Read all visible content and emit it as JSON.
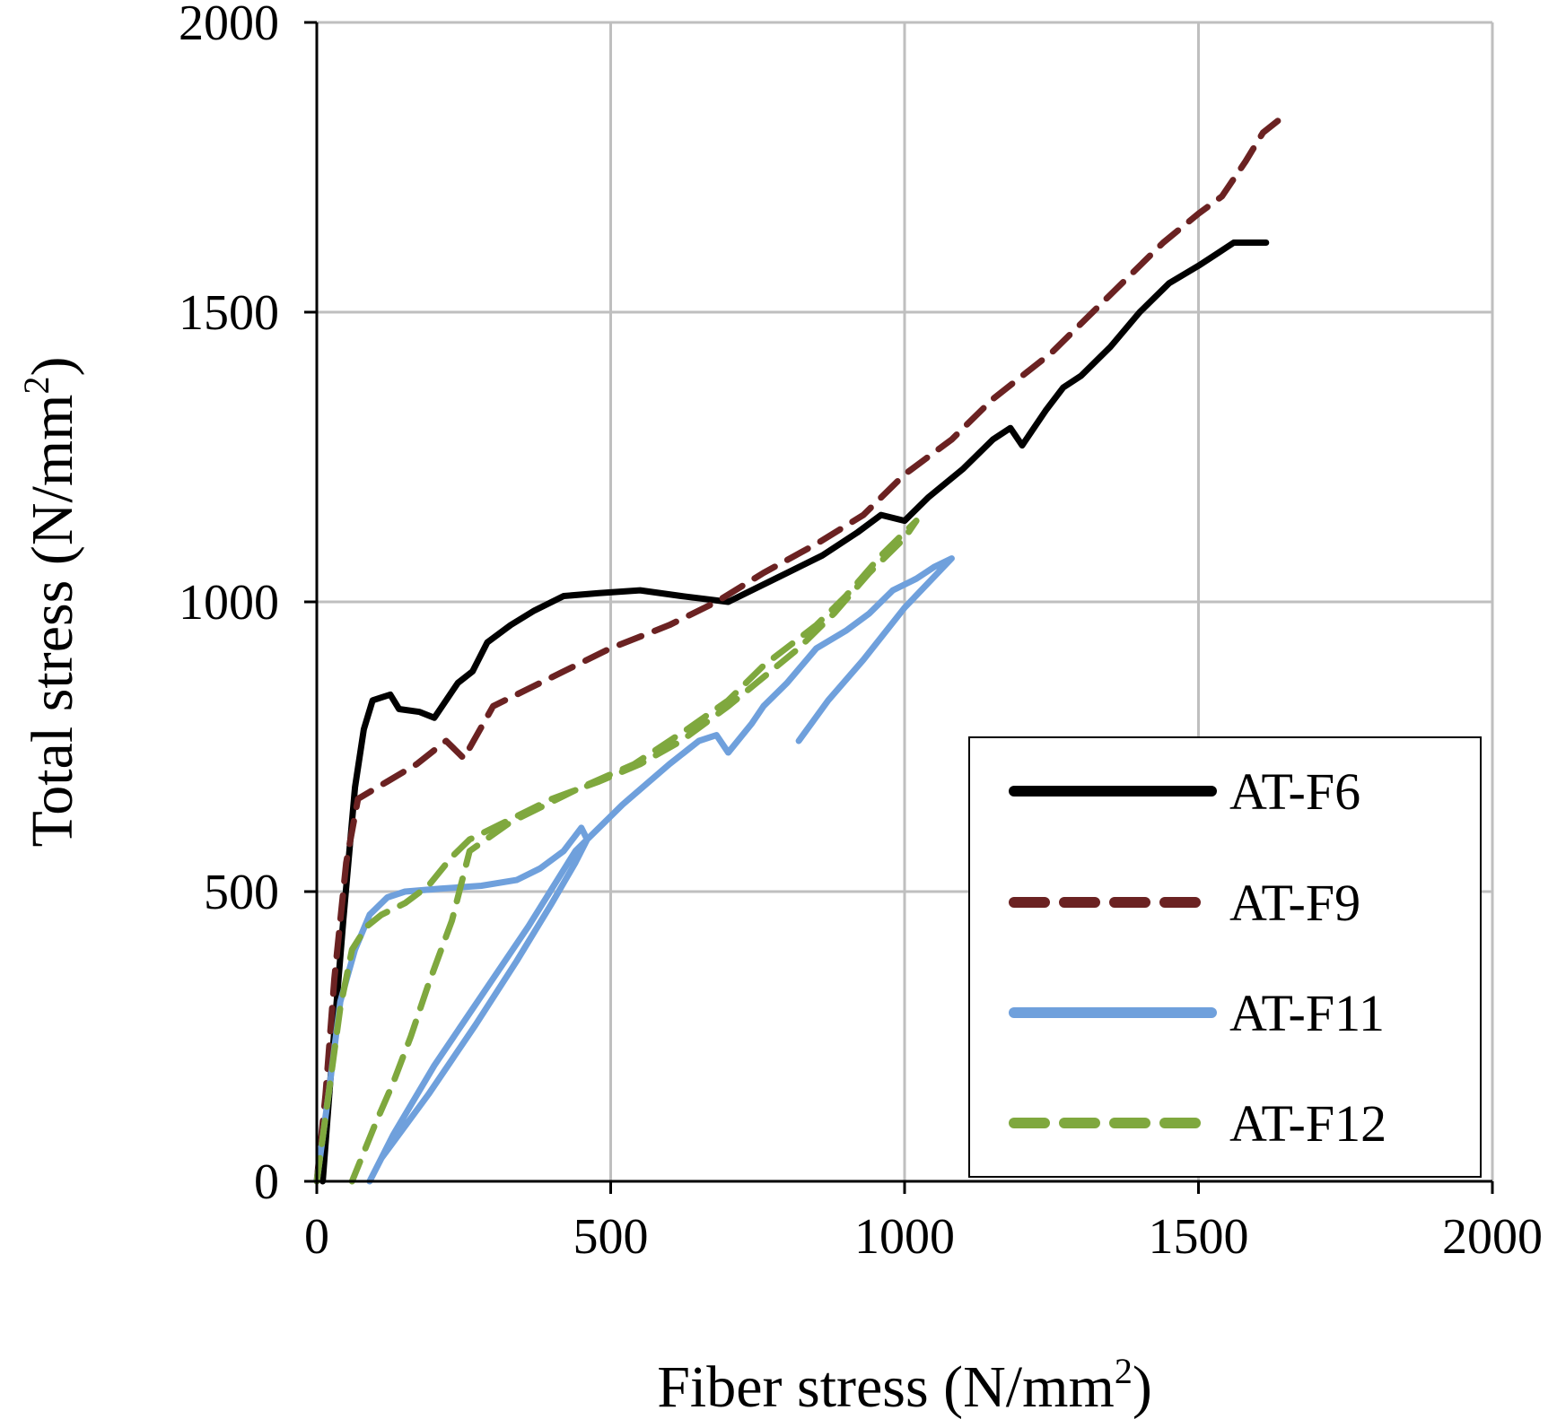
{
  "chart_data": {
    "type": "line",
    "xlabel": {
      "text": "Fiber stress (N/mm",
      "sup": "2",
      "close": ")"
    },
    "ylabel": {
      "text": "Total stress (N/mm",
      "sup": "2",
      "close": ")"
    },
    "xlim": [
      0,
      2000
    ],
    "ylim": [
      0,
      2000
    ],
    "xticks": [
      "0",
      "500",
      "1000",
      "1500",
      "2000"
    ],
    "yticks": [
      "0",
      "500",
      "1000",
      "1500",
      "2000"
    ],
    "xtick_values": [
      0,
      500,
      1000,
      1500,
      2000
    ],
    "ytick_values": [
      0,
      500,
      1000,
      1500,
      2000
    ],
    "grid": true,
    "legend_position": "bottom-right",
    "series": [
      {
        "name": "AT-F6",
        "color": "#000000",
        "dash": "solid",
        "points": [
          [
            10,
            0
          ],
          [
            25,
            200
          ],
          [
            45,
            450
          ],
          [
            65,
            680
          ],
          [
            80,
            780
          ],
          [
            95,
            830
          ],
          [
            110,
            835
          ],
          [
            125,
            840
          ],
          [
            140,
            815
          ],
          [
            175,
            810
          ],
          [
            200,
            800
          ],
          [
            220,
            830
          ],
          [
            240,
            860
          ],
          [
            265,
            880
          ],
          [
            290,
            930
          ],
          [
            330,
            960
          ],
          [
            370,
            985
          ],
          [
            420,
            1010
          ],
          [
            480,
            1015
          ],
          [
            550,
            1020
          ],
          [
            620,
            1010
          ],
          [
            700,
            1000
          ],
          [
            780,
            1040
          ],
          [
            860,
            1080
          ],
          [
            920,
            1120
          ],
          [
            960,
            1150
          ],
          [
            1000,
            1140
          ],
          [
            1040,
            1180
          ],
          [
            1100,
            1230
          ],
          [
            1150,
            1280
          ],
          [
            1180,
            1300
          ],
          [
            1200,
            1270
          ],
          [
            1240,
            1330
          ],
          [
            1270,
            1370
          ],
          [
            1300,
            1390
          ],
          [
            1350,
            1440
          ],
          [
            1400,
            1500
          ],
          [
            1450,
            1550
          ],
          [
            1500,
            1580
          ],
          [
            1530,
            1600
          ],
          [
            1560,
            1620
          ],
          [
            1600,
            1620
          ],
          [
            1615,
            1620
          ]
        ]
      },
      {
        "name": "AT-F9",
        "color": "#6b2222",
        "dash": "dashed",
        "points": [
          [
            0,
            0
          ],
          [
            15,
            150
          ],
          [
            30,
            350
          ],
          [
            50,
            550
          ],
          [
            70,
            660
          ],
          [
            120,
            690
          ],
          [
            170,
            720
          ],
          [
            220,
            760
          ],
          [
            250,
            730
          ],
          [
            300,
            820
          ],
          [
            360,
            850
          ],
          [
            420,
            880
          ],
          [
            500,
            920
          ],
          [
            600,
            960
          ],
          [
            680,
            1000
          ],
          [
            760,
            1050
          ],
          [
            850,
            1100
          ],
          [
            930,
            1150
          ],
          [
            1000,
            1220
          ],
          [
            1080,
            1280
          ],
          [
            1150,
            1350
          ],
          [
            1250,
            1430
          ],
          [
            1350,
            1530
          ],
          [
            1440,
            1620
          ],
          [
            1500,
            1670
          ],
          [
            1540,
            1700
          ],
          [
            1580,
            1760
          ],
          [
            1610,
            1810
          ],
          [
            1635,
            1830
          ]
        ]
      },
      {
        "name": "AT-F11",
        "color": "#6fa0dc",
        "dash": "solid",
        "points": [
          [
            0,
            0
          ],
          [
            20,
            150
          ],
          [
            40,
            310
          ],
          [
            65,
            400
          ],
          [
            90,
            460
          ],
          [
            120,
            490
          ],
          [
            150,
            500
          ],
          [
            210,
            505
          ],
          [
            280,
            510
          ],
          [
            340,
            520
          ],
          [
            380,
            540
          ],
          [
            420,
            570
          ],
          [
            450,
            610
          ],
          [
            460,
            590
          ],
          [
            440,
            550
          ],
          [
            400,
            480
          ],
          [
            340,
            380
          ],
          [
            270,
            270
          ],
          [
            190,
            150
          ],
          [
            110,
            40
          ],
          [
            90,
            0
          ],
          [
            130,
            80
          ],
          [
            200,
            200
          ],
          [
            280,
            320
          ],
          [
            360,
            440
          ],
          [
            440,
            570
          ],
          [
            520,
            650
          ],
          [
            600,
            720
          ],
          [
            650,
            760
          ],
          [
            680,
            770
          ],
          [
            700,
            740
          ],
          [
            740,
            790
          ],
          [
            760,
            820
          ],
          [
            800,
            860
          ],
          [
            850,
            920
          ],
          [
            900,
            950
          ],
          [
            940,
            980
          ],
          [
            980,
            1020
          ],
          [
            1020,
            1040
          ],
          [
            1050,
            1060
          ],
          [
            1080,
            1075
          ],
          [
            1000,
            990
          ],
          [
            930,
            900
          ],
          [
            870,
            830
          ],
          [
            820,
            760
          ]
        ]
      },
      {
        "name": "AT-F12",
        "color": "#7fa83e",
        "dash": "dashed",
        "points": [
          [
            0,
            0
          ],
          [
            20,
            150
          ],
          [
            40,
            300
          ],
          [
            60,
            400
          ],
          [
            85,
            440
          ],
          [
            110,
            460
          ],
          [
            150,
            480
          ],
          [
            190,
            510
          ],
          [
            230,
            560
          ],
          [
            260,
            590
          ],
          [
            320,
            620
          ],
          [
            400,
            660
          ],
          [
            480,
            690
          ],
          [
            550,
            720
          ],
          [
            620,
            760
          ],
          [
            700,
            820
          ],
          [
            760,
            870
          ],
          [
            820,
            920
          ],
          [
            880,
            980
          ],
          [
            940,
            1050
          ],
          [
            1000,
            1110
          ],
          [
            1020,
            1140
          ],
          [
            960,
            1080
          ],
          [
            900,
            1010
          ],
          [
            850,
            960
          ],
          [
            760,
            890
          ],
          [
            700,
            830
          ],
          [
            630,
            780
          ],
          [
            540,
            720
          ],
          [
            450,
            680
          ],
          [
            330,
            620
          ],
          [
            260,
            570
          ],
          [
            230,
            450
          ],
          [
            190,
            340
          ],
          [
            160,
            250
          ],
          [
            130,
            170
          ],
          [
            100,
            100
          ],
          [
            80,
            50
          ],
          [
            60,
            0
          ]
        ]
      }
    ]
  }
}
